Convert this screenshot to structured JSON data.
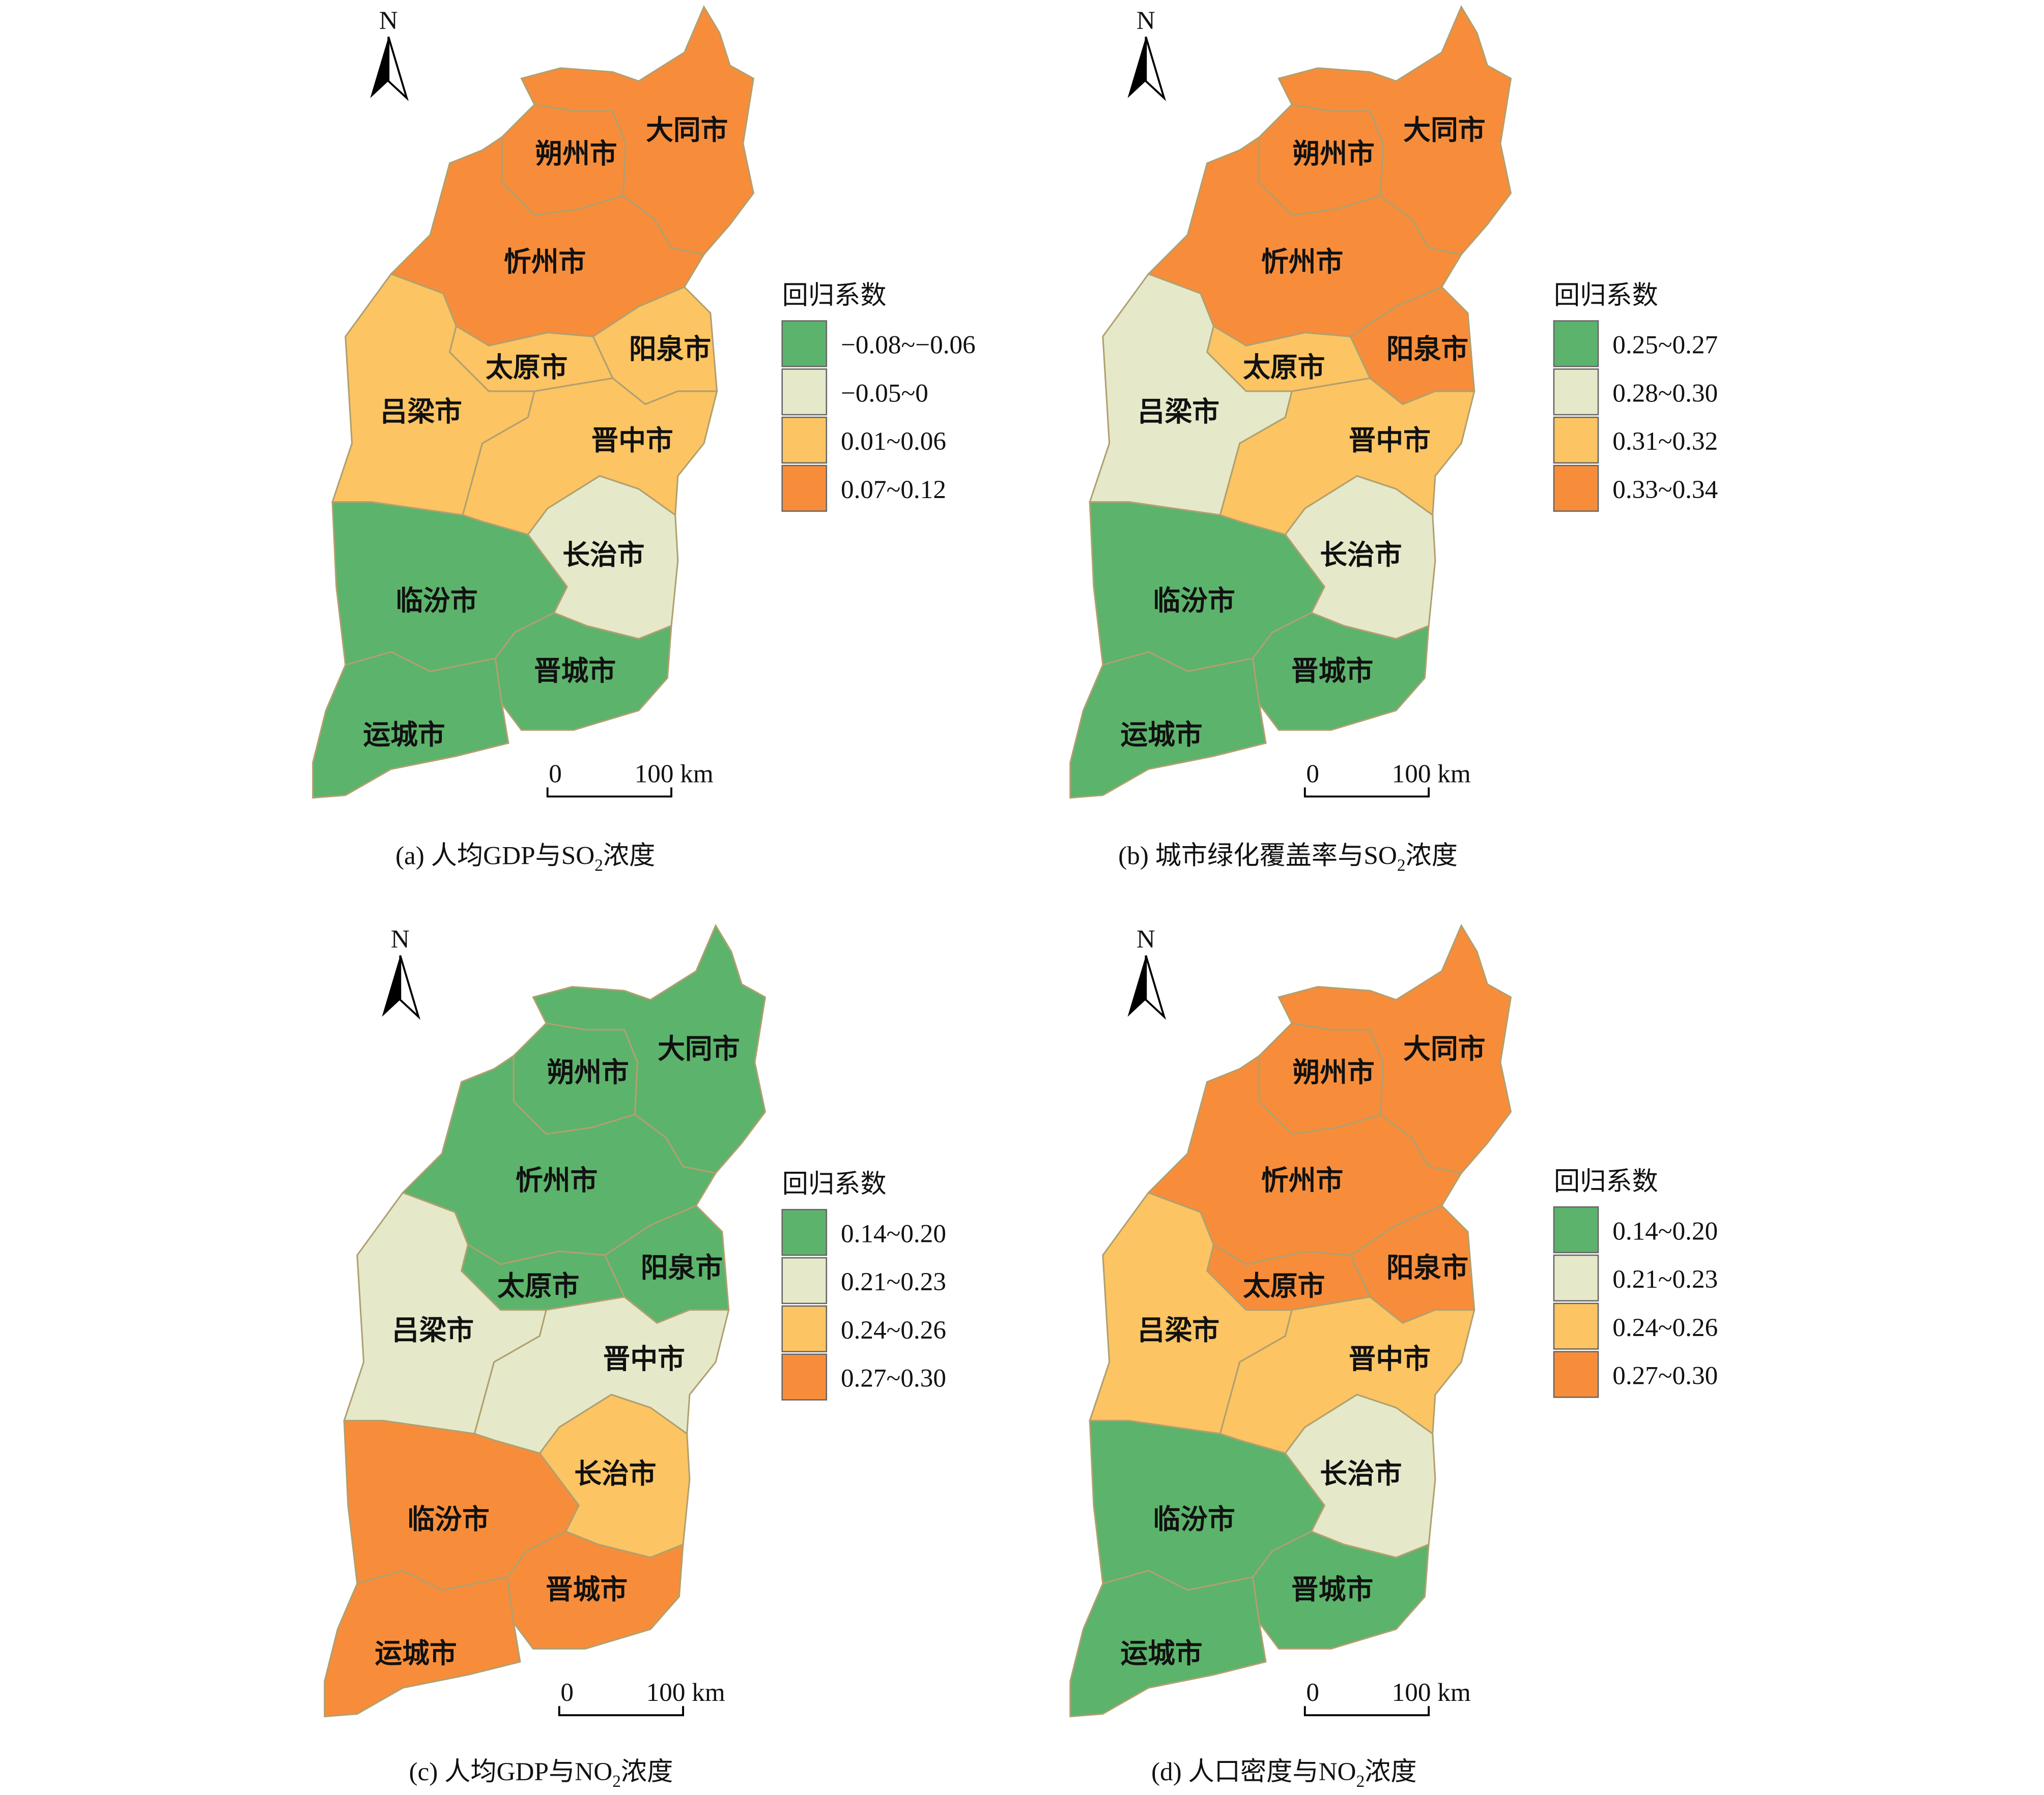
{
  "north": "N",
  "scale_bar": {
    "start": "0",
    "end": "100 km"
  },
  "region_names": [
    "大同市",
    "朔州市",
    "忻州市",
    "吕梁市",
    "太原市",
    "阳泉市",
    "晋中市",
    "长治市",
    "临汾市",
    "晋城市",
    "运城市"
  ],
  "panels": [
    {
      "caption": {
        "before": "(a) 人均GDP与SO",
        "sub": "2",
        "after": "浓度"
      },
      "legend": {
        "title": "回归系数",
        "items": [
          {
            "label": "−0.08~−0.06",
            "color": "#5cb36b"
          },
          {
            "label": "−0.05~0",
            "color": "#e5e9c9"
          },
          {
            "label": "0.01~0.06",
            "color": "#fcc462"
          },
          {
            "label": "0.07~0.12",
            "color": "#f78d3a"
          }
        ]
      },
      "fills": [
        "#f78d3a",
        "#f78d3a",
        "#f78d3a",
        "#fcc462",
        "#fcc462",
        "#fcc462",
        "#fcc462",
        "#e5e9c9",
        "#5cb36b",
        "#5cb36b",
        "#5cb36b"
      ]
    },
    {
      "caption": {
        "before": "(b) 城市绿化覆盖率与SO",
        "sub": "2",
        "after": "浓度"
      },
      "legend": {
        "title": "回归系数",
        "items": [
          {
            "label": "0.25~0.27",
            "color": "#5cb36b"
          },
          {
            "label": "0.28~0.30",
            "color": "#e5e9c9"
          },
          {
            "label": "0.31~0.32",
            "color": "#fcc462"
          },
          {
            "label": "0.33~0.34",
            "color": "#f78d3a"
          }
        ]
      },
      "fills": [
        "#f78d3a",
        "#f78d3a",
        "#f78d3a",
        "#e5e9c9",
        "#fcc462",
        "#f78d3a",
        "#fcc462",
        "#e5e9c9",
        "#5cb36b",
        "#5cb36b",
        "#5cb36b"
      ]
    },
    {
      "caption": {
        "before": "(c) 人均GDP与NO",
        "sub": "2",
        "after": "浓度"
      },
      "legend": {
        "title": "回归系数",
        "items": [
          {
            "label": "0.14~0.20",
            "color": "#5cb36b"
          },
          {
            "label": "0.21~0.23",
            "color": "#e5e9c9"
          },
          {
            "label": "0.24~0.26",
            "color": "#fcc462"
          },
          {
            "label": "0.27~0.30",
            "color": "#f78d3a"
          }
        ]
      },
      "fills": [
        "#5cb36b",
        "#5cb36b",
        "#5cb36b",
        "#e5e9c9",
        "#5cb36b",
        "#5cb36b",
        "#e5e9c9",
        "#fcc462",
        "#f78d3a",
        "#f78d3a",
        "#f78d3a"
      ]
    },
    {
      "caption": {
        "before": "(d) 人口密度与NO",
        "sub": "2",
        "after": "浓度"
      },
      "legend": {
        "title": "回归系数",
        "items": [
          {
            "label": "0.14~0.20",
            "color": "#5cb36b"
          },
          {
            "label": "0.21~0.23",
            "color": "#e5e9c9"
          },
          {
            "label": "0.24~0.26",
            "color": "#fcc462"
          },
          {
            "label": "0.27~0.30",
            "color": "#f78d3a"
          }
        ]
      },
      "fills": [
        "#f78d3a",
        "#f78d3a",
        "#f78d3a",
        "#fcc462",
        "#f78d3a",
        "#f78d3a",
        "#fcc462",
        "#e5e9c9",
        "#5cb36b",
        "#5cb36b",
        "#5cb36b"
      ]
    }
  ]
}
